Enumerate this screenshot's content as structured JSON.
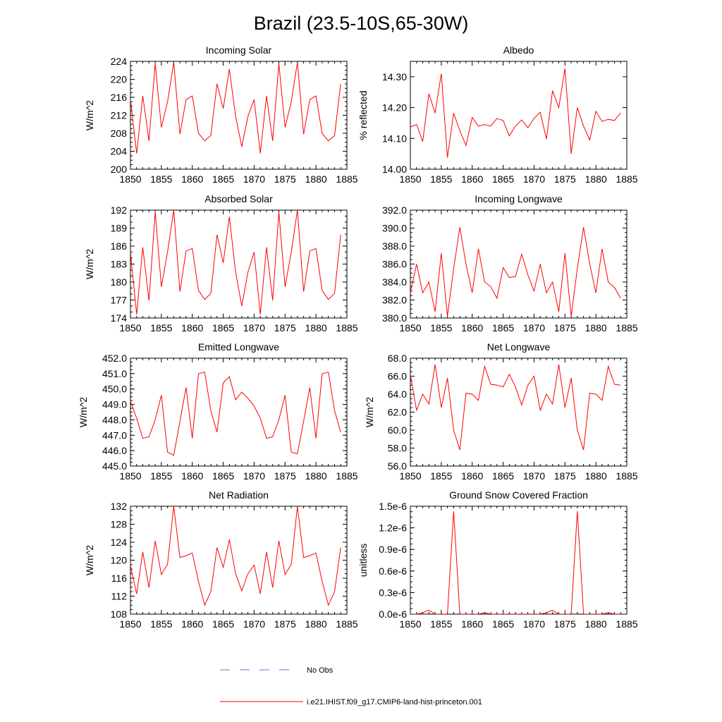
{
  "figure": {
    "title": "Brazil (23.5-10S,65-30W)"
  },
  "legend": [
    {
      "label": "No Obs",
      "color": "#6f6fd8",
      "dash": true
    },
    {
      "label": "i.e21.IHIST.f09_g17.CMIP6-land-hist-princeton.001",
      "color": "#ff0000",
      "dash": false
    }
  ],
  "chart_data": [
    {
      "type": "line",
      "title": "Incoming Solar",
      "ylabel": "W/m^2",
      "xlim": [
        1850,
        1885
      ],
      "ylim": [
        200,
        224
      ],
      "xticks": [
        1850,
        1855,
        1860,
        1865,
        1870,
        1875,
        1880,
        1885
      ],
      "yticks": [
        200,
        204,
        208,
        212,
        216,
        220,
        224
      ],
      "ytick_labels": [
        "200",
        "204",
        "208",
        "212",
        "216",
        "220",
        "224"
      ],
      "ytick_minor": 1,
      "series": [
        {
          "color": "#ff0000",
          "x": [
            1850,
            1851,
            1852,
            1853,
            1854,
            1855,
            1856,
            1857,
            1858,
            1859,
            1860,
            1861,
            1862,
            1863,
            1864,
            1865,
            1866,
            1867,
            1868,
            1869,
            1870,
            1871,
            1872,
            1873,
            1874,
            1875,
            1876,
            1877,
            1878,
            1879,
            1880,
            1881,
            1882,
            1883,
            1884
          ],
          "y": [
            215.5,
            203.5,
            216.3,
            206.3,
            223.5,
            209.3,
            215.0,
            223.8,
            207.8,
            215.5,
            216.3,
            208.0,
            206.3,
            207.5,
            219.0,
            213.5,
            222.3,
            211.8,
            205.0,
            211.8,
            215.5,
            203.5,
            216.3,
            206.3,
            223.5,
            209.3,
            215.0,
            223.8,
            207.8,
            215.5,
            216.3,
            208.0,
            206.3,
            207.5,
            219.0
          ]
        }
      ]
    },
    {
      "type": "line",
      "title": "Albedo",
      "ylabel": "% reflected",
      "xlim": [
        1850,
        1885
      ],
      "ylim": [
        14.0,
        14.35
      ],
      "xticks": [
        1850,
        1855,
        1860,
        1865,
        1870,
        1875,
        1880,
        1885
      ],
      "yticks": [
        14.0,
        14.1,
        14.2,
        14.3
      ],
      "ytick_labels": [
        "14.00",
        "14.10",
        "14.20",
        "14.30"
      ],
      "ytick_minor": 1,
      "series": [
        {
          "color": "#ff0000",
          "x": [
            1850,
            1851,
            1852,
            1853,
            1854,
            1855,
            1856,
            1857,
            1858,
            1859,
            1860,
            1861,
            1862,
            1863,
            1864,
            1865,
            1866,
            1867,
            1868,
            1869,
            1870,
            1871,
            1872,
            1873,
            1874,
            1875,
            1876,
            1877,
            1878,
            1879,
            1880,
            1881,
            1882,
            1883,
            1884
          ],
          "y": [
            14.137,
            14.145,
            14.09,
            14.245,
            14.182,
            14.31,
            14.038,
            14.182,
            14.125,
            14.077,
            14.168,
            14.14,
            14.145,
            14.14,
            14.165,
            14.158,
            14.108,
            14.14,
            14.16,
            14.135,
            14.165,
            14.185,
            14.098,
            14.255,
            14.2,
            14.327,
            14.05,
            14.2,
            14.14,
            14.095,
            14.188,
            14.155,
            14.162,
            14.158,
            14.183
          ]
        }
      ]
    },
    {
      "type": "line",
      "title": "Absorbed Solar",
      "ylabel": "W/m^2",
      "xlim": [
        1850,
        1885
      ],
      "ylim": [
        174,
        192
      ],
      "xticks": [
        1850,
        1855,
        1860,
        1865,
        1870,
        1875,
        1880,
        1885
      ],
      "yticks": [
        174,
        177,
        180,
        183,
        186,
        189,
        192
      ],
      "ytick_labels": [
        "174",
        "177",
        "180",
        "183",
        "186",
        "189",
        "192"
      ],
      "ytick_minor": 1,
      "series": [
        {
          "color": "#ff0000",
          "x": [
            1850,
            1851,
            1852,
            1853,
            1854,
            1855,
            1856,
            1857,
            1858,
            1859,
            1860,
            1861,
            1862,
            1863,
            1864,
            1865,
            1866,
            1867,
            1868,
            1869,
            1870,
            1871,
            1872,
            1873,
            1874,
            1875,
            1876,
            1877,
            1878,
            1879,
            1880,
            1881,
            1882,
            1883,
            1884
          ],
          "y": [
            185.0,
            174.6,
            185.8,
            176.9,
            191.7,
            179.2,
            185.0,
            192.0,
            178.4,
            185.2,
            185.6,
            178.6,
            177.1,
            178.1,
            187.9,
            183.2,
            190.9,
            181.7,
            176.0,
            181.7,
            185.0,
            174.6,
            185.8,
            176.9,
            191.7,
            179.2,
            185.0,
            192.0,
            178.4,
            185.2,
            185.6,
            178.6,
            177.1,
            178.1,
            187.9
          ]
        }
      ]
    },
    {
      "type": "line",
      "title": "Incoming Longwave",
      "ylabel": "",
      "xlim": [
        1850,
        1885
      ],
      "ylim": [
        380,
        392
      ],
      "xticks": [
        1850,
        1855,
        1860,
        1865,
        1870,
        1875,
        1880,
        1885
      ],
      "yticks": [
        380,
        382,
        384,
        386,
        388,
        390,
        392
      ],
      "ytick_labels": [
        "380.0",
        "382.0",
        "384.0",
        "386.0",
        "388.0",
        "390.0",
        "392.0"
      ],
      "ytick_minor": 0.5,
      "series": [
        {
          "color": "#ff0000",
          "x": [
            1850,
            1851,
            1852,
            1853,
            1854,
            1855,
            1856,
            1857,
            1858,
            1859,
            1860,
            1861,
            1862,
            1863,
            1864,
            1865,
            1866,
            1867,
            1868,
            1869,
            1870,
            1871,
            1872,
            1873,
            1874,
            1875,
            1876,
            1877,
            1878,
            1879,
            1880,
            1881,
            1882,
            1883,
            1884
          ],
          "y": [
            382.8,
            386.0,
            382.8,
            384.0,
            380.7,
            387.2,
            380.2,
            385.5,
            390.1,
            386.0,
            382.8,
            387.7,
            384.0,
            383.5,
            382.2,
            385.6,
            384.5,
            384.6,
            387.1,
            384.8,
            383.0,
            386.0,
            382.8,
            384.0,
            380.7,
            387.2,
            380.2,
            385.5,
            390.1,
            386.0,
            382.8,
            387.7,
            384.0,
            383.4,
            382.2
          ]
        }
      ]
    },
    {
      "type": "line",
      "title": "Emitted Longwave",
      "ylabel": "W/m^2",
      "xlim": [
        1850,
        1885
      ],
      "ylim": [
        445,
        452
      ],
      "xticks": [
        1850,
        1855,
        1860,
        1865,
        1870,
        1875,
        1880,
        1885
      ],
      "yticks": [
        445,
        446,
        447,
        448,
        449,
        450,
        451,
        452
      ],
      "ytick_labels": [
        "445.0",
        "446.0",
        "447.0",
        "448.0",
        "449.0",
        "450.0",
        "451.0",
        "452.0"
      ],
      "ytick_minor": 0.25,
      "series": [
        {
          "color": "#ff0000",
          "x": [
            1850,
            1851,
            1852,
            1853,
            1854,
            1855,
            1856,
            1857,
            1858,
            1859,
            1860,
            1861,
            1862,
            1863,
            1864,
            1865,
            1866,
            1867,
            1868,
            1869,
            1870,
            1871,
            1872,
            1873,
            1874,
            1875,
            1876,
            1877,
            1878,
            1879,
            1880,
            1881,
            1882,
            1883,
            1884
          ],
          "y": [
            449.2,
            448.1,
            446.8,
            446.9,
            448.0,
            449.6,
            445.9,
            445.7,
            447.9,
            450.1,
            446.8,
            451.0,
            451.1,
            448.6,
            447.2,
            450.4,
            450.8,
            449.3,
            449.8,
            449.4,
            448.9,
            448.1,
            446.8,
            446.9,
            448.0,
            449.6,
            445.9,
            445.8,
            447.9,
            450.1,
            446.8,
            451.0,
            451.1,
            448.6,
            447.2
          ]
        }
      ]
    },
    {
      "type": "line",
      "title": "Net Longwave",
      "ylabel": "W/m^2",
      "xlim": [
        1850,
        1885
      ],
      "ylim": [
        56,
        68
      ],
      "xticks": [
        1850,
        1855,
        1860,
        1865,
        1870,
        1875,
        1880,
        1885
      ],
      "yticks": [
        56,
        58,
        60,
        62,
        64,
        66,
        68
      ],
      "ytick_labels": [
        "56.0",
        "58.0",
        "60.0",
        "62.0",
        "64.0",
        "66.0",
        "68.0"
      ],
      "ytick_minor": 0.5,
      "series": [
        {
          "color": "#ff0000",
          "x": [
            1850,
            1851,
            1852,
            1853,
            1854,
            1855,
            1856,
            1857,
            1858,
            1859,
            1860,
            1861,
            1862,
            1863,
            1864,
            1865,
            1866,
            1867,
            1868,
            1869,
            1870,
            1871,
            1872,
            1873,
            1874,
            1875,
            1876,
            1877,
            1878,
            1879,
            1880,
            1881,
            1882,
            1883,
            1884
          ],
          "y": [
            66.2,
            62.2,
            64.0,
            62.9,
            67.3,
            62.5,
            65.8,
            60.0,
            57.8,
            64.1,
            64.0,
            63.3,
            67.1,
            65.1,
            65.0,
            64.8,
            66.2,
            64.8,
            62.8,
            65.0,
            66.0,
            62.2,
            64.0,
            62.9,
            67.3,
            62.5,
            65.8,
            60.0,
            57.8,
            64.1,
            64.0,
            63.3,
            67.1,
            65.1,
            65.0
          ]
        }
      ]
    },
    {
      "type": "line",
      "title": "Net Radiation",
      "ylabel": "W/m^2",
      "xlim": [
        1850,
        1885
      ],
      "ylim": [
        108,
        132
      ],
      "xticks": [
        1850,
        1855,
        1860,
        1865,
        1870,
        1875,
        1880,
        1885
      ],
      "yticks": [
        108,
        112,
        116,
        120,
        124,
        128,
        132
      ],
      "ytick_labels": [
        "108",
        "112",
        "116",
        "120",
        "124",
        "128",
        "132"
      ],
      "ytick_minor": 1,
      "series": [
        {
          "color": "#ff0000",
          "x": [
            1850,
            1851,
            1852,
            1853,
            1854,
            1855,
            1856,
            1857,
            1858,
            1859,
            1860,
            1861,
            1862,
            1863,
            1864,
            1865,
            1866,
            1867,
            1868,
            1869,
            1870,
            1871,
            1872,
            1873,
            1874,
            1875,
            1876,
            1877,
            1878,
            1879,
            1880,
            1881,
            1882,
            1883,
            1884
          ],
          "y": [
            118.8,
            112.5,
            121.8,
            113.9,
            124.3,
            116.8,
            119.1,
            132.0,
            120.6,
            121.0,
            121.6,
            115.3,
            110.0,
            113.0,
            122.8,
            118.4,
            124.6,
            117.0,
            113.2,
            117.0,
            118.9,
            112.5,
            121.8,
            113.9,
            124.3,
            116.8,
            119.1,
            132.0,
            120.6,
            121.0,
            121.6,
            115.3,
            110.0,
            113.0,
            122.8
          ]
        }
      ]
    },
    {
      "type": "line",
      "title": "Ground Snow Covered Fraction",
      "ylabel": "unitless",
      "xlim": [
        1850,
        1885
      ],
      "ylim": [
        0,
        1.5e-06
      ],
      "xticks": [
        1850,
        1855,
        1860,
        1865,
        1870,
        1875,
        1880,
        1885
      ],
      "yticks": [
        0,
        3e-07,
        6e-07,
        9e-07,
        1.2e-06,
        1.5e-06
      ],
      "ytick_labels": [
        "0.0e-6",
        "0.3e-6",
        "0.6e-6",
        "0.9e-6",
        "1.2e-6",
        "1.5e-6"
      ],
      "ytick_minor": 7.5e-08,
      "series": [
        {
          "color": "#ff0000",
          "x": [
            1850,
            1851,
            1852,
            1853,
            1854,
            1855,
            1856,
            1857,
            1858,
            1859,
            1860,
            1861,
            1862,
            1863,
            1864,
            1865,
            1866,
            1867,
            1868,
            1869,
            1870,
            1871,
            1872,
            1873,
            1874,
            1875,
            1876,
            1877,
            1878,
            1879,
            1880,
            1881,
            1882,
            1883,
            1884
          ],
          "y": [
            0,
            0,
            2e-08,
            5.5e-08,
            0,
            0,
            0,
            1.43e-06,
            0,
            0,
            0,
            0,
            2e-08,
            0,
            0,
            0,
            0,
            0,
            0,
            0,
            0,
            0,
            2e-08,
            5.5e-08,
            0,
            0,
            0,
            1.43e-06,
            0,
            0,
            0,
            0,
            2e-08,
            0,
            0
          ]
        }
      ]
    }
  ]
}
